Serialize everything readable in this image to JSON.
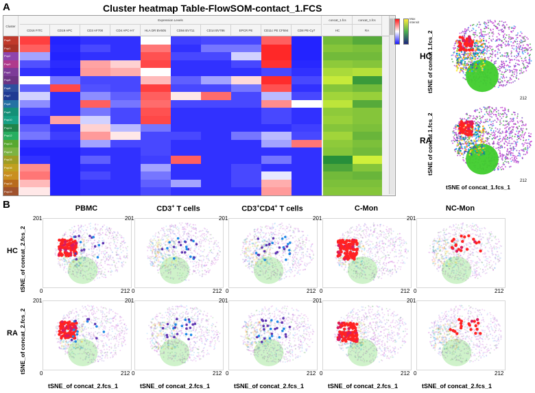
{
  "panel_a": {
    "letter": "A",
    "title": "Cluster heatmap Table-FlowSOM-contact_1.FCS",
    "corner_label": "Cluster",
    "group_header": "Expression Levels",
    "markers": [
      "CD16 FITC",
      "CD19 APC",
      "CD3 AF700",
      "CD4 APC-H7",
      "HLA DR BV605",
      "CD56 BV711",
      "CD14 BV786",
      "EPCR PE",
      "CD11c PE CF594",
      "CD8 PE-Cy7"
    ],
    "group_cols": [
      {
        "top": "concat_1.fcs",
        "bottom": "HC"
      },
      {
        "top": "concat_1.fcs",
        "bottom": "RA"
      }
    ],
    "legend_label": "Max intensity",
    "clusters": [
      "Pop0",
      "Pop1",
      "Pop2",
      "Pop3",
      "Pop4",
      "Pop5",
      "Pop6",
      "Pop7",
      "Pop8",
      "Pop9",
      "Pop10",
      "Pop11",
      "Pop12",
      "Pop13",
      "Pop14",
      "Pop15",
      "Pop16",
      "Pop17",
      "Pop18",
      "Pop19"
    ],
    "cluster_colors": [
      "#c0392b",
      "#a93226",
      "#8e44ad",
      "#b03a8c",
      "#7d3c98",
      "#6c3483",
      "#2e4f9e",
      "#1f3a93",
      "#2471a3",
      "#148f77",
      "#16a085",
      "#1e8449",
      "#27ae60",
      "#58a830",
      "#7cb342",
      "#9e9d24",
      "#c0a020",
      "#c98f1f",
      "#b86b1d",
      "#a0522d"
    ],
    "expression": [
      [
        0.92,
        0.02,
        0.05,
        0.05,
        0.5,
        0.08,
        0.1,
        0.1,
        0.85,
        0.02
      ],
      [
        0.85,
        0.03,
        0.1,
        0.05,
        0.8,
        0.05,
        0.2,
        0.2,
        0.97,
        0.02
      ],
      [
        0.3,
        0.02,
        0.05,
        0.05,
        0.88,
        0.1,
        0.1,
        0.4,
        0.97,
        0.02
      ],
      [
        0.12,
        0.04,
        0.7,
        0.6,
        0.9,
        0.05,
        0.05,
        0.1,
        0.95,
        0.03
      ],
      [
        0.05,
        0.02,
        0.72,
        0.68,
        0.5,
        0.05,
        0.05,
        0.05,
        0.1,
        0.05
      ],
      [
        0.5,
        0.2,
        0.1,
        0.1,
        0.65,
        0.15,
        0.3,
        0.58,
        0.96,
        0.1
      ],
      [
        0.15,
        0.9,
        0.12,
        0.1,
        0.92,
        0.1,
        0.1,
        0.2,
        0.88,
        0.05
      ],
      [
        0.4,
        0.05,
        0.25,
        0.15,
        0.85,
        0.55,
        0.82,
        0.1,
        0.35,
        0.1
      ],
      [
        0.25,
        0.05,
        0.85,
        0.2,
        0.82,
        0.1,
        0.1,
        0.1,
        0.75,
        0.5
      ],
      [
        0.1,
        0.05,
        0.2,
        0.1,
        0.88,
        0.05,
        0.05,
        0.05,
        0.1,
        0.05
      ],
      [
        0.05,
        0.7,
        0.4,
        0.1,
        0.9,
        0.05,
        0.05,
        0.05,
        0.1,
        0.05
      ],
      [
        0.15,
        0.05,
        0.6,
        0.35,
        0.2,
        0.05,
        0.05,
        0.05,
        0.05,
        0.08
      ],
      [
        0.2,
        0.08,
        0.72,
        0.55,
        0.1,
        0.1,
        0.05,
        0.2,
        0.35,
        0.1
      ],
      [
        0.05,
        0.05,
        0.3,
        0.1,
        0.1,
        0.05,
        0.05,
        0.05,
        0.3,
        0.8
      ],
      [
        0.02,
        0.02,
        0.05,
        0.05,
        0.1,
        0.05,
        0.05,
        0.05,
        0.05,
        0.05
      ],
      [
        0.05,
        0.02,
        0.15,
        0.05,
        0.08,
        0.85,
        0.05,
        0.05,
        0.2,
        0.05
      ],
      [
        0.75,
        0.02,
        0.05,
        0.05,
        0.3,
        0.05,
        0.05,
        0.1,
        0.05,
        0.05
      ],
      [
        0.8,
        0.02,
        0.1,
        0.05,
        0.2,
        0.05,
        0.05,
        0.1,
        0.45,
        0.05
      ],
      [
        0.65,
        0.02,
        0.05,
        0.05,
        0.15,
        0.3,
        0.05,
        0.1,
        0.68,
        0.05
      ],
      [
        0.55,
        0.02,
        0.05,
        0.05,
        0.1,
        0.05,
        0.05,
        0.05,
        0.72,
        0.05
      ]
    ],
    "abundance": [
      [
        0.45,
        0.3
      ],
      [
        0.55,
        0.5
      ],
      [
        0.45,
        0.45
      ],
      [
        0.6,
        0.55
      ],
      [
        0.75,
        0.8
      ],
      [
        0.9,
        0.15
      ],
      [
        0.55,
        0.45
      ],
      [
        0.7,
        0.65
      ],
      [
        0.85,
        0.3
      ],
      [
        0.6,
        0.55
      ],
      [
        0.65,
        0.55
      ],
      [
        0.55,
        0.5
      ],
      [
        0.7,
        0.4
      ],
      [
        0.6,
        0.5
      ],
      [
        0.55,
        0.45
      ],
      [
        0.05,
        0.95
      ],
      [
        0.25,
        0.55
      ],
      [
        0.45,
        0.4
      ],
      [
        0.5,
        0.5
      ],
      [
        0.55,
        0.55
      ]
    ],
    "tsne_plots": [
      {
        "label": "HC",
        "ylabel": "tSNE of concat 1.fcs_2",
        "xlabel": "",
        "xmax": "212"
      },
      {
        "label": "RA",
        "ylabel": "tSNE of concat 1.fcs_2",
        "xlabel": "tSNE of concat_1.fcs_1",
        "xmax": "212"
      }
    ]
  },
  "panel_b": {
    "letter": "B",
    "columns": [
      {
        "title": "PBMC",
        "sup": ""
      },
      {
        "title": "CD3",
        "sup": "+",
        "title2": " T cells",
        "sup2": ""
      },
      {
        "title": "CD3",
        "sup": "+",
        "title2": "CD4",
        "sup2": "+",
        "title3": " T cells"
      },
      {
        "title": "C-Mon",
        "sup": ""
      },
      {
        "title": "NC-Mon",
        "sup": ""
      }
    ],
    "rows": [
      "HC",
      "RA"
    ],
    "ylabel": "tSNE_of concat_2.fcs_2",
    "xlabel": "tSNE_of concat_2.fcs_1",
    "ymax": "201",
    "xmin": "0",
    "xmax": "212"
  },
  "colors": {
    "heat_low": "#1a1aff",
    "heat_mid": "#ffffff",
    "heat_high": "#ff1a1a",
    "abund_low": "#1e8a3a",
    "abund_high": "#d9f53a"
  }
}
